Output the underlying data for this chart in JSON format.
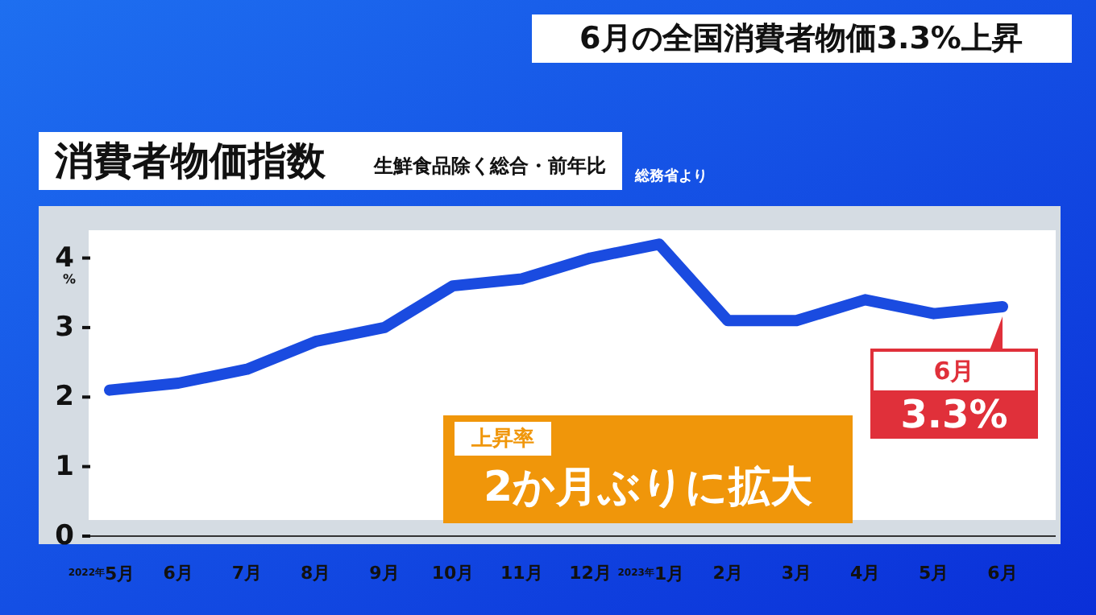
{
  "chart_data": {
    "type": "line",
    "title": "消費者物価指数",
    "subtitle": "生鮮食品除く総合・前年比",
    "ylabel": "%",
    "categories": [
      "2022年5月",
      "6月",
      "7月",
      "8月",
      "9月",
      "10月",
      "11月",
      "12月",
      "2023年1月",
      "2月",
      "3月",
      "4月",
      "5月",
      "6月"
    ],
    "series": [
      {
        "color": "#1a4be0",
        "values": [
          2.1,
          2.2,
          2.4,
          2.8,
          3.0,
          3.6,
          3.7,
          4.0,
          4.2,
          3.1,
          3.1,
          3.4,
          3.2,
          3.3
        ],
        "value_labels": [
          null,
          null,
          null,
          null,
          null,
          null,
          null,
          null,
          null,
          null,
          null,
          null,
          null,
          "3.3%"
        ]
      }
    ],
    "ylim": [
      0,
      4.4
    ],
    "yticks": [
      0,
      1,
      2,
      3,
      4
    ],
    "grid": false,
    "marker": "none",
    "line_style": "solid",
    "annotations": [
      "6月の全国消費者物価3.3%上昇",
      "総務省より",
      "上昇率",
      "2か月ぶりに拡大",
      "6月"
    ]
  }
}
